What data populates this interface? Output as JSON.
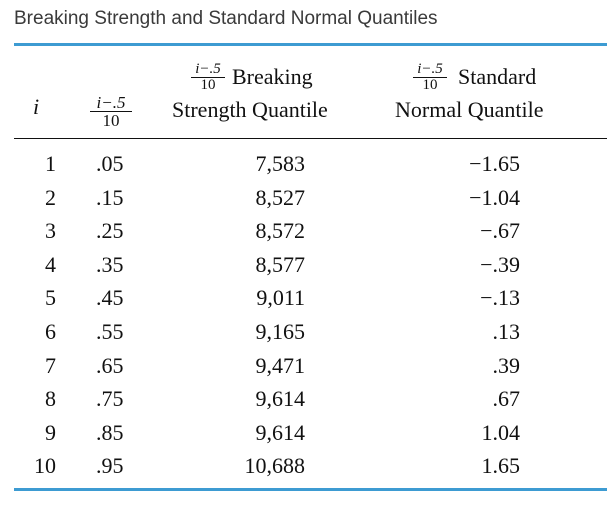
{
  "caption": "Breaking Strength and Standard Normal Quantiles",
  "header": {
    "i": "i",
    "frac_num": "i−.5",
    "frac_den": "10",
    "col3_line1": "Breaking",
    "col3_line2": "Strength Quantile",
    "col4_line1": "Standard",
    "col4_line2": "Normal Quantile"
  },
  "rows": [
    {
      "i": "1",
      "p": ".05",
      "q": "7,583",
      "z": "−1.65"
    },
    {
      "i": "2",
      "p": ".15",
      "q": "8,527",
      "z": "−1.04"
    },
    {
      "i": "3",
      "p": ".25",
      "q": "8,572",
      "z": "−.67"
    },
    {
      "i": "4",
      "p": ".35",
      "q": "8,577",
      "z": "−.39"
    },
    {
      "i": "5",
      "p": ".45",
      "q": "9,011",
      "z": "−.13"
    },
    {
      "i": "6",
      "p": ".55",
      "q": "9,165",
      "z": ".13"
    },
    {
      "i": "7",
      "p": ".65",
      "q": "9,471",
      "z": ".39"
    },
    {
      "i": "8",
      "p": ".75",
      "q": "9,614",
      "z": ".67"
    },
    {
      "i": "9",
      "p": ".85",
      "q": "9,614",
      "z": "1.04"
    },
    {
      "i": "10",
      "p": ".95",
      "q": "10,688",
      "z": "1.65"
    }
  ]
}
